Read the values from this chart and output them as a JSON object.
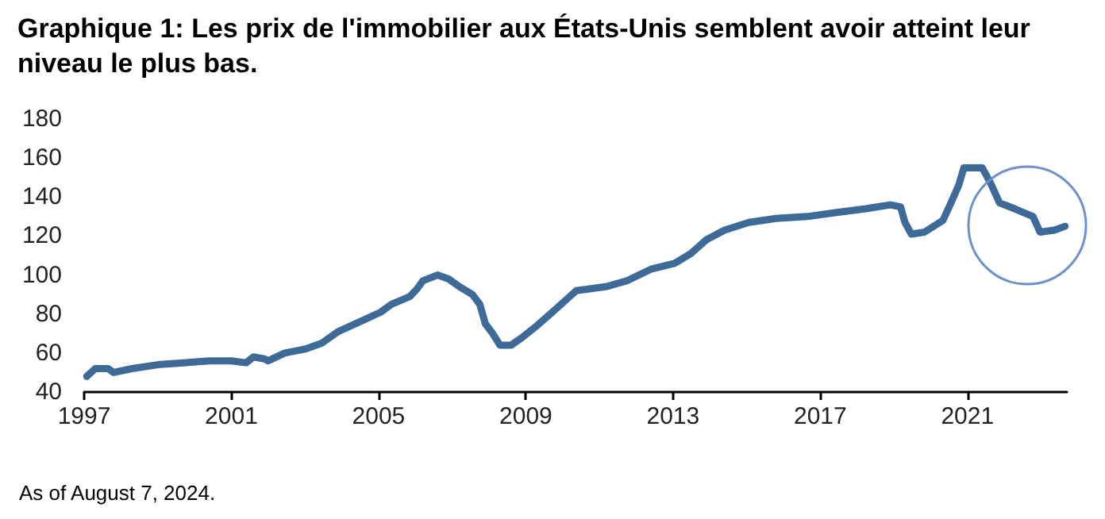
{
  "chart_data": {
    "type": "line",
    "title": "Graphique 1: Les prix de l'immobilier aux États-Unis semblent avoir atteint leur niveau le plus bas.",
    "annotations": [
      "As of August 7, 2024."
    ],
    "x": [
      1997.07,
      1997.3,
      1997.65,
      1997.8,
      1998.3,
      1999.0,
      1999.7,
      2000.4,
      2001.0,
      2001.4,
      2001.6,
      2001.9,
      2002.0,
      2002.45,
      2003.0,
      2003.45,
      2003.9,
      2004.6,
      2005.06,
      2005.35,
      2005.85,
      2006.05,
      2006.2,
      2006.6,
      2006.9,
      2007.2,
      2007.55,
      2007.75,
      2007.9,
      2008.1,
      2008.3,
      2008.6,
      2008.9,
      2009.3,
      2009.72,
      2010.37,
      2011.17,
      2011.74,
      2012.4,
      2013.04,
      2013.48,
      2013.9,
      2014.4,
      2015.06,
      2015.8,
      2016.65,
      2017.4,
      2018.24,
      2018.9,
      2019.18,
      2019.3,
      2019.47,
      2019.83,
      2020.33,
      2020.55,
      2020.76,
      2020.9,
      2021.4,
      2021.63,
      2021.87,
      2022.28,
      2022.78,
      2022.97,
      2023.36,
      2023.65
    ],
    "series": [
      {
        "color": "#3d6a96",
        "values": [
          48,
          52,
          52,
          50,
          52,
          54,
          55,
          56,
          56,
          55,
          58,
          57,
          56,
          60,
          62,
          65,
          71,
          77,
          81,
          85,
          89,
          93,
          97,
          100,
          98,
          94,
          90,
          85,
          75,
          70,
          64,
          64,
          68,
          74,
          81,
          92,
          94,
          97,
          103,
          106,
          111,
          118,
          123,
          127,
          129,
          130,
          132,
          134,
          136,
          135,
          127,
          121,
          122,
          128,
          137,
          146,
          155,
          155,
          147,
          137,
          134,
          130,
          122,
          123,
          125
        ]
      }
    ],
    "xlim": [
      1997,
      2023.7
    ],
    "xticks": [
      1997,
      2001,
      2005,
      2009,
      2013,
      2017,
      2021
    ],
    "ylim": [
      40,
      180
    ],
    "yticks": [
      40,
      60,
      80,
      100,
      120,
      140,
      160,
      180
    ],
    "grid": false,
    "marker": "none",
    "line_style": "solid"
  }
}
